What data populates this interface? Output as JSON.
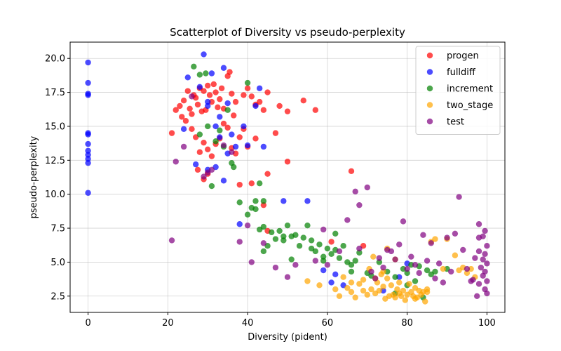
{
  "chart_data": {
    "type": "scatter",
    "title": "Scatterplot of Diversity vs pseudo-perplexity",
    "xlabel": "Diversity (pident)",
    "ylabel": "pseudo-perplexity",
    "xlim": [
      -4.5,
      104.5
    ],
    "ylim": [
      1.3,
      21.2
    ],
    "xticks": [
      0,
      20,
      40,
      60,
      80,
      100
    ],
    "yticks": [
      2.5,
      5.0,
      7.5,
      10.0,
      12.5,
      15.0,
      17.5,
      20.0
    ],
    "xtick_labels": [
      "0",
      "20",
      "40",
      "60",
      "80",
      "100"
    ],
    "ytick_labels": [
      "2.5",
      "5.0",
      "7.5",
      "10.0",
      "12.5",
      "15.0",
      "17.5",
      "20.0"
    ],
    "grid": true,
    "legend_position": "top-right",
    "series": [
      {
        "name": "progen",
        "color": "#ff0000",
        "points": [
          [
            21,
            14.5
          ],
          [
            22,
            16.2
          ],
          [
            23,
            16.5
          ],
          [
            23.5,
            15.7
          ],
          [
            24,
            16.9
          ],
          [
            24.5,
            15.4
          ],
          [
            25,
            17.6
          ],
          [
            25.5,
            16.3
          ],
          [
            26,
            15.9
          ],
          [
            26.5,
            17.3
          ],
          [
            27,
            17.1
          ],
          [
            27.5,
            16.6
          ],
          [
            28,
            17.8
          ],
          [
            28.5,
            16.1
          ],
          [
            29,
            17.6
          ],
          [
            29.5,
            16.2
          ],
          [
            30,
            18.0
          ],
          [
            30.5,
            17.3
          ],
          [
            31,
            16.8
          ],
          [
            31.5,
            18.1
          ],
          [
            32,
            17.5
          ],
          [
            32.5,
            16.4
          ],
          [
            33,
            17.0
          ],
          [
            33.5,
            17.8
          ],
          [
            34,
            16.3
          ],
          [
            35,
            18.7
          ],
          [
            35.5,
            19.0
          ],
          [
            36,
            17.4
          ],
          [
            36.5,
            15.8
          ],
          [
            37,
            16.8
          ],
          [
            26,
            14.8
          ],
          [
            27,
            14.2
          ],
          [
            28,
            13.1
          ],
          [
            29,
            13.8
          ],
          [
            30,
            13.3
          ],
          [
            31,
            12.8
          ],
          [
            32,
            13.7
          ],
          [
            33,
            14.1
          ],
          [
            34,
            15.2
          ],
          [
            35,
            14.9
          ],
          [
            36,
            13.4
          ],
          [
            37,
            13.0
          ],
          [
            38,
            14.2
          ],
          [
            39,
            14.8
          ],
          [
            27.5,
            11.8
          ],
          [
            29,
            11.1
          ],
          [
            30,
            11.5
          ],
          [
            38,
            10.7
          ],
          [
            41,
            10.8
          ],
          [
            44,
            9.2
          ],
          [
            39,
            17.3
          ],
          [
            40,
            17.8
          ],
          [
            41,
            17.2
          ],
          [
            42,
            16.6
          ],
          [
            43,
            16.8
          ],
          [
            44,
            16.2
          ],
          [
            45,
            17.5
          ],
          [
            47,
            14.5
          ],
          [
            48,
            16.5
          ],
          [
            50,
            16.1
          ],
          [
            50,
            12.4
          ],
          [
            45,
            11.5
          ],
          [
            54,
            16.9
          ],
          [
            57,
            16.2
          ],
          [
            45,
            7.3
          ],
          [
            61,
            6.5
          ],
          [
            66,
            11.7
          ],
          [
            69,
            6.2
          ],
          [
            42,
            14.1
          ],
          [
            40,
            13.5
          ]
        ]
      },
      {
        "name": "fulldiff",
        "color": "#0000ff",
        "points": [
          [
            0,
            19.7
          ],
          [
            0,
            18.2
          ],
          [
            0,
            17.4
          ],
          [
            0,
            17.3
          ],
          [
            0,
            14.5
          ],
          [
            0,
            14.4
          ],
          [
            0,
            13.7
          ],
          [
            0,
            13.2
          ],
          [
            0,
            12.9
          ],
          [
            0,
            12.6
          ],
          [
            0,
            12.3
          ],
          [
            0,
            10.1
          ],
          [
            24,
            14.8
          ],
          [
            25,
            18.6
          ],
          [
            27,
            12.2
          ],
          [
            28,
            17.9
          ],
          [
            29,
            20.3
          ],
          [
            30,
            16.5
          ],
          [
            31,
            18.9
          ],
          [
            32,
            15.0
          ],
          [
            33,
            15.7
          ],
          [
            34,
            19.3
          ],
          [
            35,
            16.7
          ],
          [
            36,
            14.4
          ],
          [
            37,
            13.5
          ],
          [
            30,
            11.8
          ],
          [
            32,
            12.0
          ],
          [
            34,
            11.0
          ],
          [
            38,
            7.8
          ],
          [
            39,
            15.0
          ],
          [
            40,
            13.6
          ],
          [
            42,
            16.5
          ],
          [
            43,
            17.8
          ],
          [
            44,
            13.5
          ],
          [
            49,
            9.5
          ],
          [
            55,
            9.5
          ],
          [
            59,
            4.4
          ],
          [
            61,
            3.5
          ],
          [
            62,
            4.1
          ],
          [
            64,
            3.3
          ],
          [
            74,
            2.9
          ],
          [
            78,
            3.9
          ],
          [
            80,
            4.9
          ],
          [
            30,
            16.8
          ],
          [
            33,
            14.2
          ],
          [
            35,
            13.0
          ]
        ]
      },
      {
        "name": "increment",
        "color": "#008000",
        "points": [
          [
            26.5,
            19.4
          ],
          [
            28,
            18.8
          ],
          [
            29.5,
            18.9
          ],
          [
            32,
            13.9
          ],
          [
            34,
            13.5
          ],
          [
            36,
            12.3
          ],
          [
            36.5,
            12.0
          ],
          [
            28,
            14.4
          ],
          [
            30,
            15.0
          ],
          [
            33,
            14.7
          ],
          [
            40,
            18.2
          ],
          [
            35,
            16.2
          ],
          [
            38,
            9.4
          ],
          [
            40,
            8.5
          ],
          [
            41,
            9.0
          ],
          [
            42,
            8.9
          ],
          [
            42,
            9.5
          ],
          [
            43,
            10.8
          ],
          [
            44,
            9.5
          ],
          [
            31,
            10.6
          ],
          [
            43,
            7.4
          ],
          [
            44,
            7.6
          ],
          [
            45,
            6.2
          ],
          [
            46,
            7.2
          ],
          [
            47,
            6.7
          ],
          [
            48,
            7.3
          ],
          [
            49,
            6.6
          ],
          [
            50,
            7.7
          ],
          [
            51,
            6.9
          ],
          [
            52,
            7.0
          ],
          [
            53,
            6.2
          ],
          [
            54,
            6.8
          ],
          [
            55,
            7.7
          ],
          [
            56,
            6.0
          ],
          [
            57,
            5.8
          ],
          [
            58,
            6.3
          ],
          [
            59,
            5.4
          ],
          [
            60,
            6.0
          ],
          [
            61,
            5.6
          ],
          [
            62,
            7.1
          ],
          [
            63,
            5.3
          ],
          [
            64,
            6.2
          ],
          [
            65,
            5.0
          ],
          [
            66,
            4.8
          ],
          [
            67,
            5.1
          ],
          [
            68,
            5.7
          ],
          [
            70,
            4.2
          ],
          [
            73,
            5.0
          ],
          [
            75,
            4.3
          ],
          [
            77,
            3.9
          ],
          [
            79,
            4.5
          ],
          [
            80,
            4.2
          ],
          [
            81,
            4.8
          ],
          [
            82,
            3.6
          ],
          [
            83,
            4.7
          ],
          [
            84,
            2.4
          ],
          [
            85,
            4.4
          ],
          [
            86,
            4.1
          ],
          [
            87,
            4.3
          ],
          [
            90,
            4.5
          ],
          [
            44,
            5.8
          ],
          [
            49,
            6.9
          ],
          [
            51,
            5.2
          ],
          [
            56,
            6.6
          ],
          [
            59,
            5.1
          ],
          [
            62,
            5.9
          ],
          [
            66,
            4.3
          ],
          [
            71,
            4.0
          ],
          [
            77,
            2.7
          ],
          [
            80,
            3.3
          ]
        ]
      },
      {
        "name": "two_stage",
        "color": "#ffa500",
        "points": [
          [
            55,
            3.6
          ],
          [
            58,
            3.3
          ],
          [
            62,
            3.0
          ],
          [
            63,
            2.5
          ],
          [
            64,
            3.9
          ],
          [
            65,
            3.1
          ],
          [
            66,
            2.8
          ],
          [
            67,
            2.4
          ],
          [
            68,
            3.4
          ],
          [
            69,
            3.7
          ],
          [
            70,
            2.6
          ],
          [
            70.5,
            4.5
          ],
          [
            71,
            3.0
          ],
          [
            71.5,
            5.4
          ],
          [
            72,
            2.7
          ],
          [
            72.5,
            3.5
          ],
          [
            73,
            2.9
          ],
          [
            73.5,
            4.1
          ],
          [
            74,
            3.2
          ],
          [
            74.5,
            2.3
          ],
          [
            75,
            3.8
          ],
          [
            75.5,
            2.5
          ],
          [
            76,
            3.3
          ],
          [
            76.5,
            2.6
          ],
          [
            77,
            2.4
          ],
          [
            77.5,
            3.0
          ],
          [
            78,
            2.7
          ],
          [
            78.5,
            2.5
          ],
          [
            79,
            2.9
          ],
          [
            79.5,
            2.2
          ],
          [
            80,
            2.6
          ],
          [
            80.5,
            3.4
          ],
          [
            81,
            2.8
          ],
          [
            81.5,
            2.5
          ],
          [
            82,
            3.1
          ],
          [
            82.5,
            2.4
          ],
          [
            83,
            2.9
          ],
          [
            83.5,
            2.6
          ],
          [
            84,
            2.8
          ],
          [
            84.5,
            2.1
          ],
          [
            85,
            3.0
          ],
          [
            86,
            6.5
          ],
          [
            87,
            6.7
          ],
          [
            89,
            4.5
          ],
          [
            90,
            6.7
          ],
          [
            92,
            5.5
          ],
          [
            93,
            4.4
          ],
          [
            94,
            4.6
          ],
          [
            95,
            4.2
          ],
          [
            96,
            4.5
          ],
          [
            97,
            3.9
          ],
          [
            77,
            5.2
          ],
          [
            75,
            6.0
          ],
          [
            74,
            4.3
          ],
          [
            78,
            3.5
          ],
          [
            66,
            3.5
          ],
          [
            69,
            2.9
          ],
          [
            82,
            2.3
          ],
          [
            85,
            2.8
          ],
          [
            72,
            3.8
          ]
        ]
      },
      {
        "name": "test",
        "color": "#800080",
        "points": [
          [
            21,
            6.6
          ],
          [
            22,
            12.4
          ],
          [
            24,
            13.5
          ],
          [
            26,
            17.2
          ],
          [
            29,
            11.3
          ],
          [
            30,
            11.6
          ],
          [
            31,
            11.8
          ],
          [
            34,
            13.6
          ],
          [
            36,
            13.1
          ],
          [
            38,
            6.5
          ],
          [
            40,
            7.7
          ],
          [
            41,
            5.0
          ],
          [
            44,
            6.4
          ],
          [
            47,
            4.6
          ],
          [
            50,
            3.9
          ],
          [
            52,
            4.8
          ],
          [
            57,
            5.1
          ],
          [
            59,
            7.4
          ],
          [
            60,
            4.8
          ],
          [
            63,
            5.8
          ],
          [
            65,
            8.1
          ],
          [
            67,
            10.2
          ],
          [
            68,
            9.2
          ],
          [
            68,
            6.0
          ],
          [
            70,
            10.5
          ],
          [
            71,
            4.3
          ],
          [
            72,
            3.8
          ],
          [
            73,
            5.3
          ],
          [
            74,
            4.6
          ],
          [
            75,
            5.9
          ],
          [
            76,
            5.8
          ],
          [
            77,
            5.2
          ],
          [
            78,
            6.3
          ],
          [
            79,
            8.0
          ],
          [
            80,
            4.5
          ],
          [
            81,
            5.4
          ],
          [
            82,
            4.8
          ],
          [
            83,
            4.2
          ],
          [
            84,
            7.0
          ],
          [
            85,
            5.1
          ],
          [
            86,
            6.4
          ],
          [
            87,
            3.8
          ],
          [
            88,
            4.9
          ],
          [
            89,
            3.5
          ],
          [
            90,
            6.8
          ],
          [
            91,
            4.3
          ],
          [
            92,
            7.1
          ],
          [
            93,
            9.8
          ],
          [
            94,
            5.9
          ],
          [
            95,
            4.5
          ],
          [
            96,
            3.6
          ],
          [
            97,
            5.3
          ],
          [
            98,
            5.8
          ],
          [
            98,
            7.8
          ],
          [
            98,
            3.4
          ],
          [
            98.5,
            4.6
          ],
          [
            99,
            6.9
          ],
          [
            99,
            4.0
          ],
          [
            99,
            5.2
          ],
          [
            99.5,
            3.0
          ],
          [
            99.5,
            7.3
          ],
          [
            99.5,
            5.6
          ],
          [
            99.5,
            4.3
          ],
          [
            100,
            3.6
          ],
          [
            100,
            4.9
          ],
          [
            100,
            2.7
          ],
          [
            100,
            6.2
          ],
          [
            97.5,
            2.5
          ],
          [
            98,
            6.8
          ],
          [
            96.5,
            3.7
          ]
        ]
      }
    ]
  }
}
